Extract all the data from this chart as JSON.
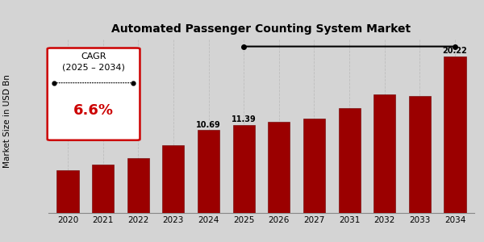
{
  "title": "Automated Passenger Counting System Market",
  "ylabel": "Market Size in USD Bn",
  "categories": [
    "2020",
    "2021",
    "2022",
    "2023",
    "2024",
    "2025",
    "2026",
    "2027",
    "2031",
    "2032",
    "2033",
    "2034"
  ],
  "values": [
    5.5,
    6.2,
    7.1,
    8.8,
    10.69,
    11.39,
    11.75,
    12.2,
    13.5,
    15.3,
    15.1,
    20.22
  ],
  "bar_color": "#9b0000",
  "bar_edge_color": "#6b0000",
  "bg_color": "#d4d4d4",
  "plot_bg_color": "#d4d4d4",
  "labeled_bars": {
    "2024": "10.69",
    "2025": "11.39",
    "2034": "20.22"
  },
  "cagr_text1": "CAGR",
  "cagr_text2": "(2025 – 2034)",
  "cagr_value": "6.6%",
  "arrow_start_cat": "2025",
  "arrow_end_cat": "2034",
  "title_fontsize": 10,
  "axis_label_fontsize": 7.5,
  "tick_fontsize": 7.5,
  "bar_label_fontsize": 7,
  "cagr_label_fontsize": 8,
  "cagr_value_fontsize": 13,
  "bottom_bar_color": "#cc0000",
  "bottom_bar_height": 0.028
}
